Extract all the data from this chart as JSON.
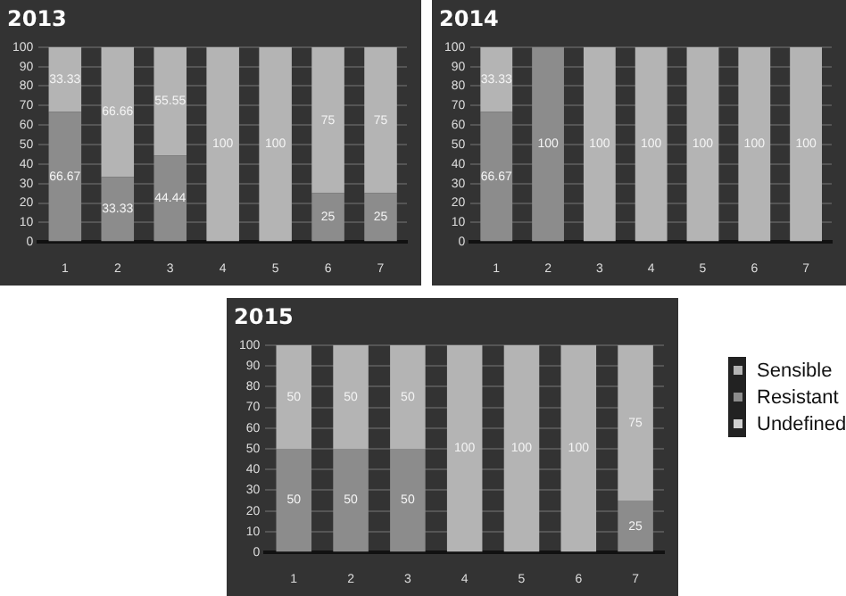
{
  "chart_data": [
    {
      "type": "bar",
      "title": "2013",
      "categories": [
        "1",
        "2",
        "3",
        "4",
        "5",
        "6",
        "7"
      ],
      "stacked": true,
      "ylim": [
        0,
        100
      ],
      "yticks": [
        0,
        10,
        20,
        30,
        40,
        50,
        60,
        70,
        80,
        90,
        100
      ],
      "grid": "y",
      "legend": false,
      "series": [
        {
          "color": "#8c8c8c",
          "values": [
            66.67,
            33.33,
            44.44,
            0,
            0,
            25,
            25
          ],
          "value_labels": [
            "66.67",
            "33.33",
            "44.44",
            null,
            null,
            "25",
            "25"
          ]
        },
        {
          "color": "#b4b4b4",
          "values": [
            33.33,
            66.66,
            55.55,
            100,
            100,
            75,
            75
          ],
          "value_labels": [
            "33.33",
            "66.66",
            "55.55",
            "100",
            "100",
            "75",
            "75"
          ]
        },
        {
          "color": "#d0d0d0",
          "values": [
            0,
            0,
            0,
            0,
            0,
            0,
            0
          ],
          "value_labels": [
            null,
            null,
            null,
            null,
            null,
            null,
            null
          ]
        }
      ]
    },
    {
      "type": "bar",
      "title": "2014",
      "categories": [
        "1",
        "2",
        "3",
        "4",
        "5",
        "6",
        "7"
      ],
      "stacked": true,
      "ylim": [
        0,
        100
      ],
      "yticks": [
        0,
        10,
        20,
        30,
        40,
        50,
        60,
        70,
        80,
        90,
        100
      ],
      "grid": "y",
      "legend": false,
      "series": [
        {
          "color": "#8c8c8c",
          "values": [
            66.67,
            100,
            0,
            0,
            0,
            0,
            0
          ],
          "value_labels": [
            "66.67",
            "100",
            null,
            null,
            null,
            null,
            null
          ]
        },
        {
          "color": "#b4b4b4",
          "values": [
            33.33,
            0,
            100,
            100,
            100,
            100,
            100
          ],
          "value_labels": [
            "33.33",
            null,
            "100",
            "100",
            "100",
            "100",
            "100"
          ]
        },
        {
          "color": "#d0d0d0",
          "values": [
            0,
            0,
            0,
            0,
            0,
            0,
            0
          ],
          "value_labels": [
            null,
            null,
            null,
            null,
            null,
            null,
            null
          ]
        }
      ]
    },
    {
      "type": "bar",
      "title": "2015",
      "categories": [
        "1",
        "2",
        "3",
        "4",
        "5",
        "6",
        "7"
      ],
      "stacked": true,
      "ylim": [
        0,
        100
      ],
      "yticks": [
        0,
        10,
        20,
        30,
        40,
        50,
        60,
        70,
        80,
        90,
        100
      ],
      "grid": "y",
      "legend": "right",
      "series": [
        {
          "name": "Resistant",
          "color": "#8c8c8c",
          "values": [
            50,
            50,
            50,
            0,
            0,
            0,
            25
          ],
          "value_labels": [
            "50",
            "50",
            "50",
            null,
            null,
            null,
            "25"
          ]
        },
        {
          "name": "Sensible",
          "color": "#b4b4b4",
          "values": [
            50,
            50,
            50,
            100,
            100,
            100,
            75
          ],
          "value_labels": [
            "50",
            "50",
            "50",
            "100",
            "100",
            "100",
            "75"
          ]
        },
        {
          "name": "Undefined",
          "color": "#d0d0d0",
          "values": [
            0,
            0,
            0,
            0,
            0,
            0,
            0
          ],
          "value_labels": [
            null,
            null,
            null,
            null,
            null,
            null,
            null
          ]
        }
      ]
    }
  ]
}
